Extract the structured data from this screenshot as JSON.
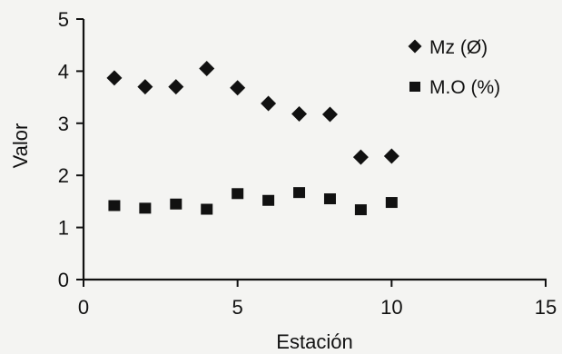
{
  "chart_data": {
    "type": "scatter",
    "xlabel": "Estación",
    "ylabel": "Valor",
    "xlim": [
      0,
      15
    ],
    "ylim": [
      0,
      5
    ],
    "xticks": [
      0,
      5,
      10,
      15
    ],
    "yticks": [
      0,
      1,
      2,
      3,
      4,
      5
    ],
    "grid": false,
    "legend_position": "top-right",
    "series": [
      {
        "name": "Mz (Ø)",
        "marker": "diamond",
        "color": "#111111",
        "x": [
          1,
          2,
          3,
          4,
          5,
          6,
          7,
          8,
          9,
          10
        ],
        "y": [
          3.87,
          3.7,
          3.7,
          4.05,
          3.68,
          3.38,
          3.18,
          3.17,
          2.35,
          2.37
        ]
      },
      {
        "name": "M.O (%)",
        "marker": "square",
        "color": "#111111",
        "x": [
          1,
          2,
          3,
          4,
          5,
          6,
          7,
          8,
          9,
          10
        ],
        "y": [
          1.42,
          1.37,
          1.45,
          1.35,
          1.65,
          1.52,
          1.67,
          1.55,
          1.34,
          1.48
        ]
      }
    ]
  }
}
